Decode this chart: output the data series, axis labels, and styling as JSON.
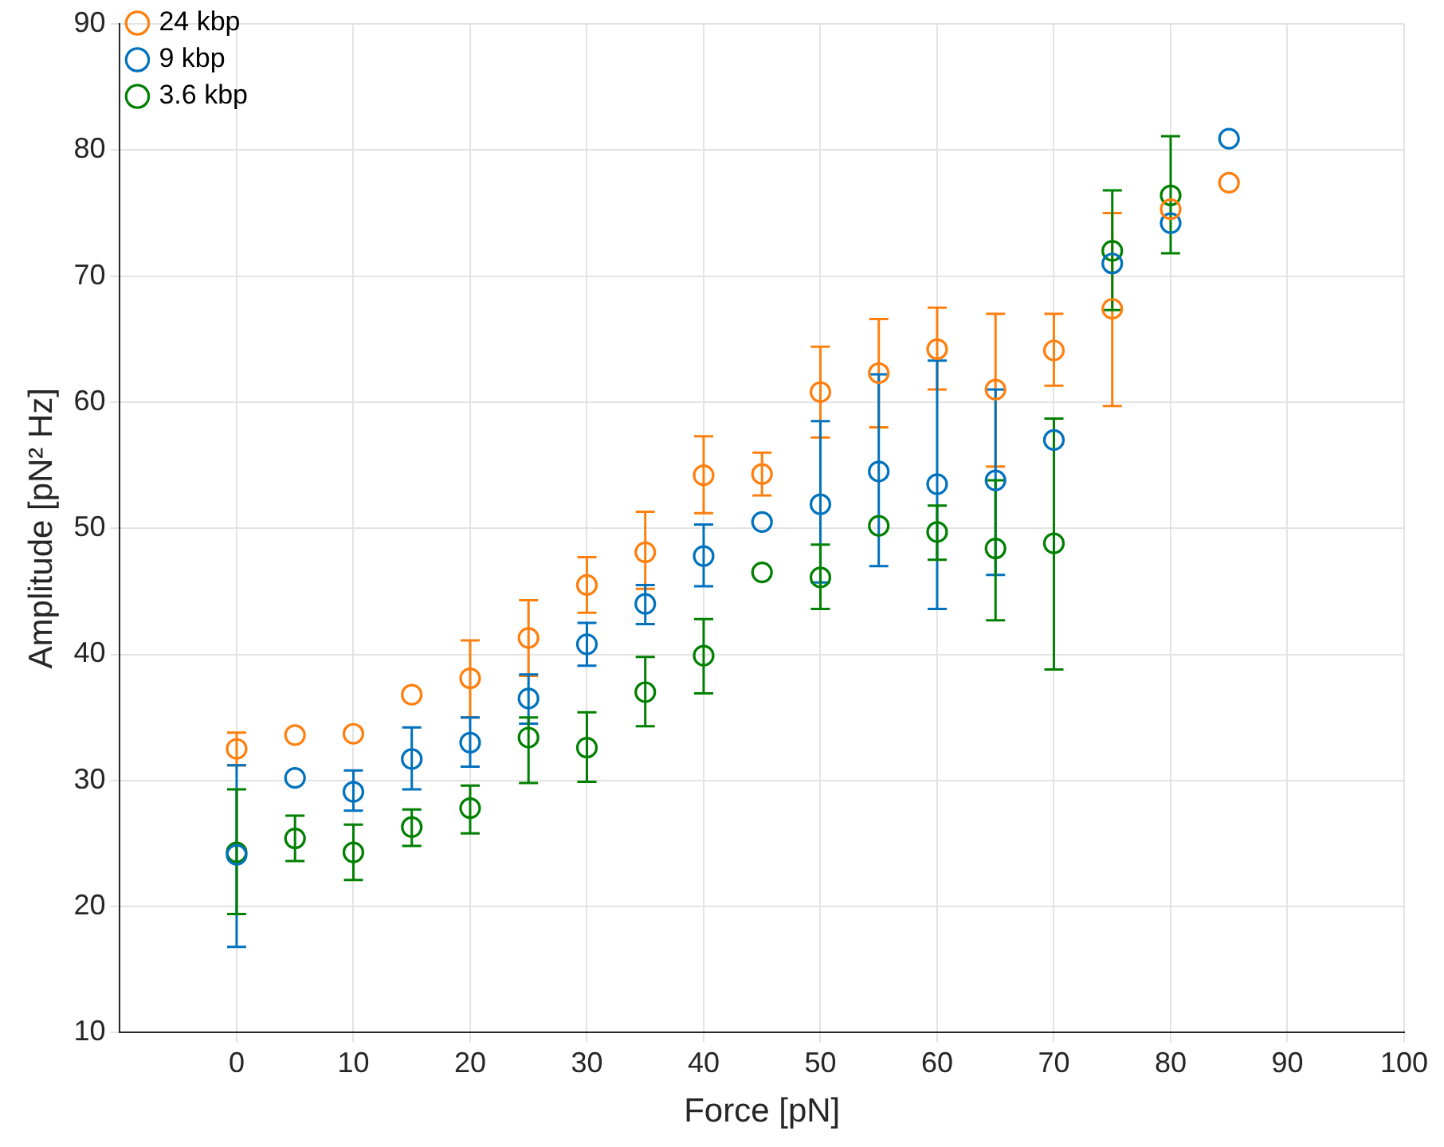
{
  "chart_data": {
    "type": "scatter",
    "xlabel": "Force [pN]",
    "ylabel": "Amplitude [pN² Hz]",
    "xlim": [
      -10,
      100
    ],
    "xticks": [
      0,
      10,
      20,
      30,
      40,
      50,
      60,
      70,
      80,
      90,
      100
    ],
    "ylim": [
      10,
      90
    ],
    "yticks": [
      10,
      20,
      30,
      40,
      50,
      60,
      70,
      80,
      90
    ],
    "grid": true,
    "legend": "top left",
    "marker": "circle",
    "series": [
      {
        "name": "24 kbp",
        "color": "#ff7f0e",
        "x": [
          0,
          5,
          10,
          15,
          20,
          25,
          30,
          35,
          40,
          45,
          50,
          55,
          60,
          65,
          70,
          75,
          80,
          85
        ],
        "values": [
          32.5,
          33.6,
          33.7,
          36.8,
          38.1,
          41.3,
          45.5,
          48.1,
          54.2,
          54.3,
          60.8,
          62.3,
          64.2,
          61,
          64.1,
          67.4,
          75.3,
          77.4
        ],
        "errors": [
          [
            31.2,
            33.8
          ],
          null,
          null,
          null,
          [
            35,
            41.1
          ],
          [
            38.3,
            44.3
          ],
          [
            43.3,
            47.7
          ],
          [
            45.2,
            51.3
          ],
          [
            51.2,
            57.3
          ],
          [
            52.6,
            56
          ],
          [
            57.2,
            64.4
          ],
          [
            58,
            66.6
          ],
          [
            61,
            67.5
          ],
          [
            54.9,
            67
          ],
          [
            61.3,
            67
          ],
          [
            59.7,
            75
          ],
          null,
          null
        ]
      },
      {
        "name": "9 kbp",
        "color": "#0072bd",
        "x": [
          0,
          5,
          10,
          15,
          20,
          25,
          30,
          35,
          40,
          45,
          50,
          55,
          60,
          65,
          70,
          75,
          80,
          85
        ],
        "values": [
          24.1,
          30.2,
          29.1,
          31.7,
          33,
          36.5,
          40.8,
          44,
          47.8,
          50.5,
          51.9,
          54.5,
          53.5,
          53.8,
          57,
          71,
          74.2,
          80.9
        ],
        "errors": [
          [
            16.8,
            31.2
          ],
          null,
          [
            27.6,
            30.8
          ],
          [
            29.3,
            34.2
          ],
          [
            31.1,
            35
          ],
          [
            34.5,
            38.4
          ],
          [
            39.1,
            42.5
          ],
          [
            42.4,
            45.5
          ],
          [
            45.4,
            50.3
          ],
          null,
          [
            45.7,
            58.5
          ],
          [
            47,
            62.2
          ],
          [
            43.6,
            63.3
          ],
          [
            46.3,
            61
          ],
          null,
          null,
          null,
          null
        ]
      },
      {
        "name": "3.6 kbp",
        "color": "#008000",
        "x": [
          0,
          5,
          10,
          15,
          20,
          25,
          30,
          35,
          40,
          45,
          50,
          55,
          60,
          65,
          70,
          75,
          80
        ],
        "values": [
          24.3,
          25.4,
          24.3,
          26.3,
          27.8,
          33.4,
          32.6,
          37,
          39.9,
          46.5,
          46.1,
          50.2,
          49.7,
          48.4,
          48.8,
          72,
          76.4
        ],
        "errors": [
          [
            19.4,
            29.3
          ],
          [
            23.6,
            27.2
          ],
          [
            22.1,
            26.5
          ],
          [
            24.8,
            27.7
          ],
          [
            25.8,
            29.6
          ],
          [
            29.8,
            35
          ],
          [
            29.9,
            35.4
          ],
          [
            34.3,
            39.8
          ],
          [
            36.9,
            42.8
          ],
          null,
          [
            43.6,
            48.7
          ],
          null,
          [
            47.5,
            51.8
          ],
          [
            42.7,
            53.8
          ],
          [
            38.8,
            58.7
          ],
          [
            67.3,
            76.8
          ],
          [
            71.8,
            81.1
          ]
        ]
      }
    ]
  }
}
